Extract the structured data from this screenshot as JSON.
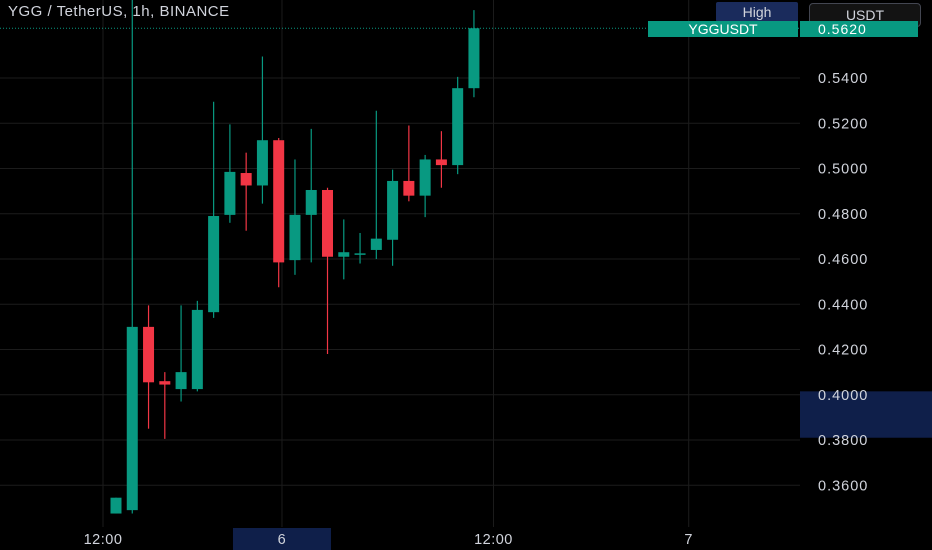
{
  "header": {
    "title": "YGG / TetherUS, 1h, BINANCE",
    "high_button": "High",
    "currency_button": "USDT"
  },
  "last_price": {
    "symbol": "YGGUSDT",
    "value": "0.5620"
  },
  "colors": {
    "up": "#089981",
    "down": "#f23645",
    "background": "#000000",
    "grid": "#1c1c1c",
    "text": "#d1d4dc",
    "highlight": "#0f1f4a"
  },
  "chart_data": {
    "type": "candlestick",
    "title": "YGG / TetherUS, 1h, BINANCE",
    "y_ticks": [
      "0.5400",
      "0.5200",
      "0.5000",
      "0.4800",
      "0.4600",
      "0.4400",
      "0.4200",
      "0.4000",
      "0.3800",
      "0.3600"
    ],
    "y_tick_values": [
      0.54,
      0.52,
      0.5,
      0.48,
      0.46,
      0.44,
      0.42,
      0.4,
      0.38,
      0.36
    ],
    "x_ticks": [
      "12:00",
      "6",
      "12:00",
      "7"
    ],
    "x_tick_index": [
      0,
      11,
      24,
      36
    ],
    "highlighted_x_tick": "6",
    "highlighted_y_range": [
      0.381,
      0.4015
    ],
    "grid": true,
    "candles": [
      {
        "o": 0.3475,
        "h": 0.3545,
        "l": 0.3475,
        "c": 0.3545
      },
      {
        "o": 0.349,
        "h": 0.5785,
        "l": 0.3475,
        "c": 0.43
      },
      {
        "o": 0.43,
        "h": 0.4395,
        "l": 0.385,
        "c": 0.4055
      },
      {
        "o": 0.406,
        "h": 0.41,
        "l": 0.3805,
        "c": 0.4045
      },
      {
        "o": 0.4025,
        "h": 0.4395,
        "l": 0.397,
        "c": 0.41
      },
      {
        "o": 0.4025,
        "h": 0.4415,
        "l": 0.4015,
        "c": 0.4375
      },
      {
        "o": 0.4365,
        "h": 0.5295,
        "l": 0.434,
        "c": 0.479
      },
      {
        "o": 0.4795,
        "h": 0.5195,
        "l": 0.476,
        "c": 0.4985
      },
      {
        "o": 0.498,
        "h": 0.507,
        "l": 0.4725,
        "c": 0.4925
      },
      {
        "o": 0.4925,
        "h": 0.5495,
        "l": 0.4845,
        "c": 0.5125
      },
      {
        "o": 0.5125,
        "h": 0.5135,
        "l": 0.4475,
        "c": 0.4585
      },
      {
        "o": 0.4595,
        "h": 0.504,
        "l": 0.453,
        "c": 0.4795
      },
      {
        "o": 0.4795,
        "h": 0.5175,
        "l": 0.4585,
        "c": 0.4905
      },
      {
        "o": 0.4905,
        "h": 0.4915,
        "l": 0.418,
        "c": 0.461
      },
      {
        "o": 0.461,
        "h": 0.4775,
        "l": 0.451,
        "c": 0.463
      },
      {
        "o": 0.4625,
        "h": 0.4715,
        "l": 0.458,
        "c": 0.4625
      },
      {
        "o": 0.464,
        "h": 0.5255,
        "l": 0.46,
        "c": 0.469
      },
      {
        "o": 0.4685,
        "h": 0.4995,
        "l": 0.457,
        "c": 0.4945
      },
      {
        "o": 0.4945,
        "h": 0.519,
        "l": 0.4855,
        "c": 0.488
      },
      {
        "o": 0.488,
        "h": 0.506,
        "l": 0.4785,
        "c": 0.504
      },
      {
        "o": 0.504,
        "h": 0.5165,
        "l": 0.4915,
        "c": 0.5015
      },
      {
        "o": 0.5015,
        "h": 0.5405,
        "l": 0.4975,
        "c": 0.5355
      },
      {
        "o": 0.5355,
        "h": 0.57,
        "l": 0.5315,
        "c": 0.562
      }
    ]
  }
}
